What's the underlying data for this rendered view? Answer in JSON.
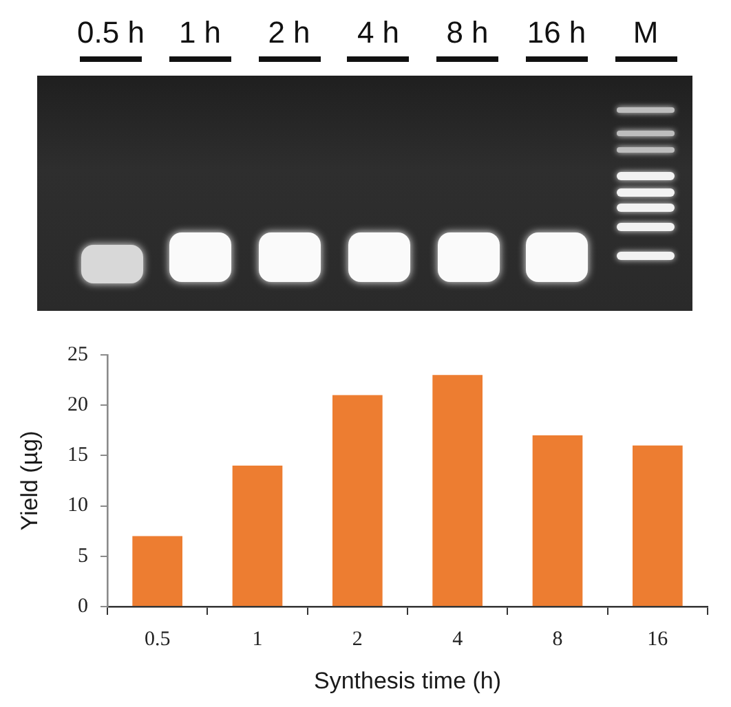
{
  "chart_data": [
    {
      "type": "other",
      "categories": [
        "0.5 h",
        "1 h",
        "2 h",
        "4 h",
        "8 h",
        "16 h",
        "M"
      ]
    },
    {
      "type": "bar",
      "xlabel": "Synthesis time (h)",
      "ylabel": "Yield (µg)",
      "categories": [
        "0.5",
        "1",
        "2",
        "4",
        "8",
        "16"
      ],
      "values": [
        7,
        14,
        21,
        23,
        17,
        16
      ],
      "color": "#ed7d31",
      "ylim": [
        0,
        25
      ],
      "yticks": [
        0,
        5,
        10,
        15,
        20,
        25
      ]
    }
  ]
}
